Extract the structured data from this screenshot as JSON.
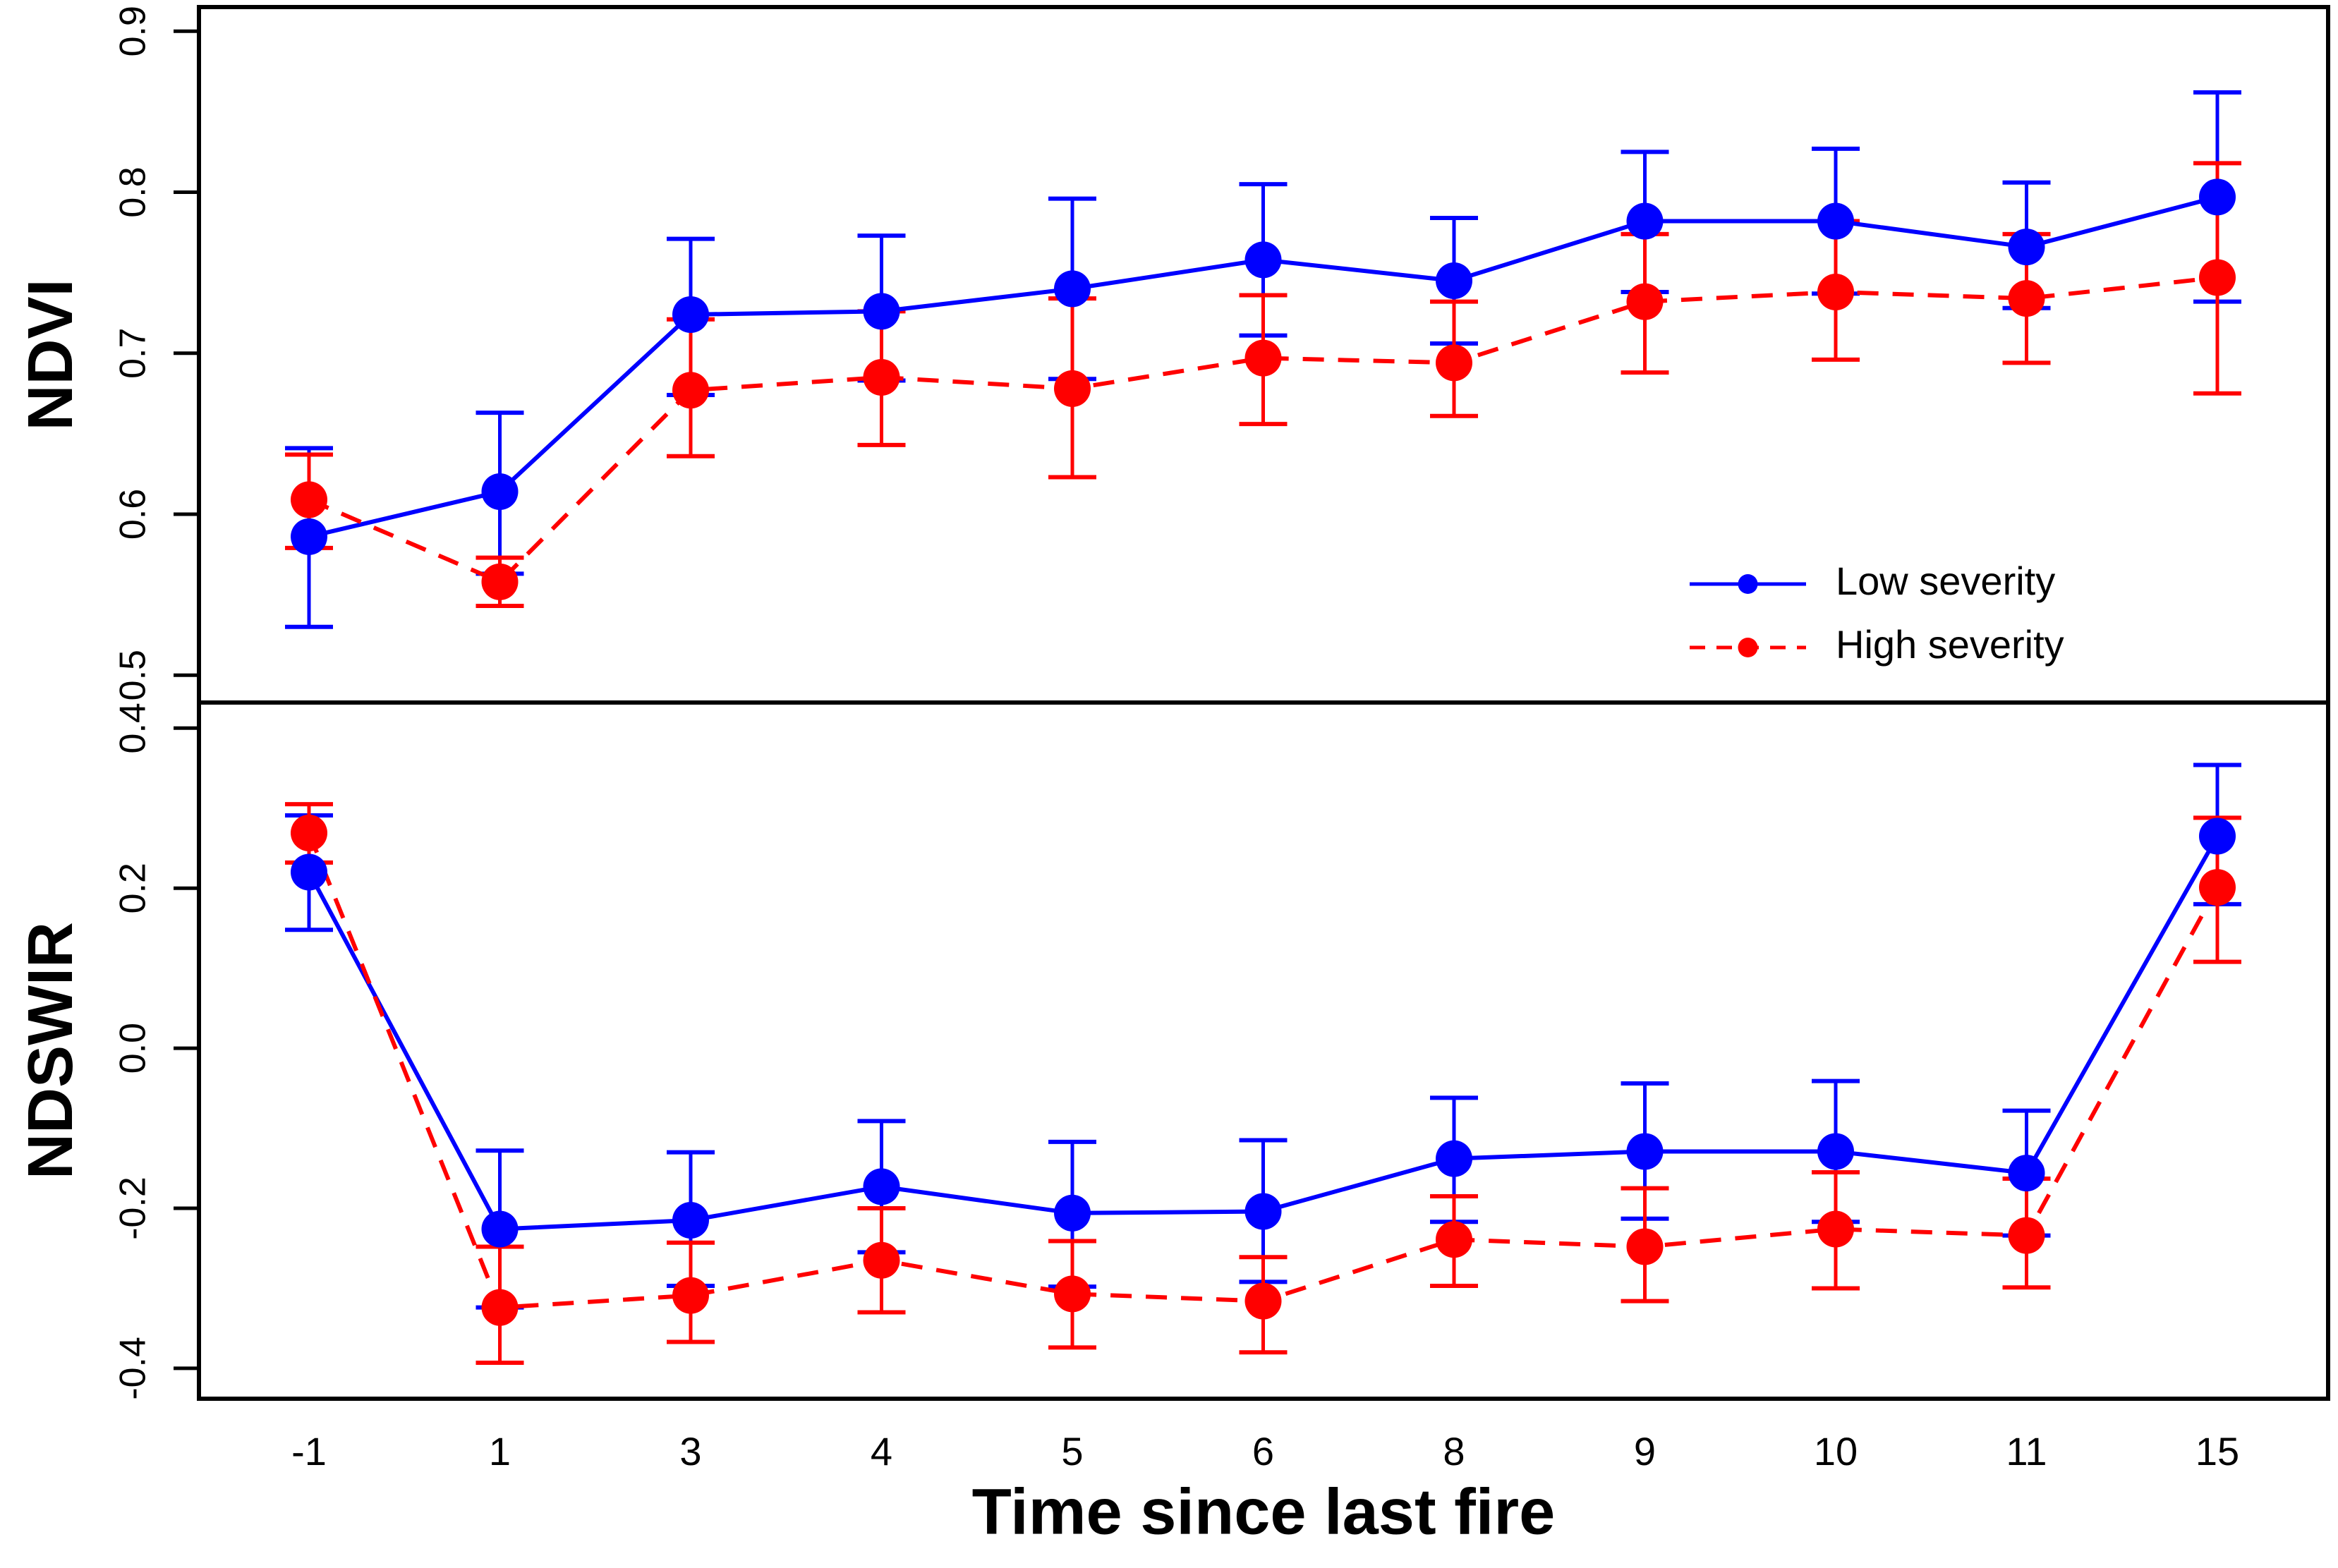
{
  "figure": {
    "x_axis_label": "Time since last fire",
    "x_categories": [
      "-1",
      "1",
      "3",
      "4",
      "5",
      "6",
      "8",
      "9",
      "10",
      "11",
      "15"
    ],
    "colors": {
      "low_severity": "#0000ff",
      "high_severity": "#ff0000",
      "axis": "#000000",
      "background": "#ffffff"
    }
  },
  "legend": {
    "items": [
      {
        "label": "Low severity",
        "color": "#0000ff",
        "linestyle": "solid"
      },
      {
        "label": "High severity",
        "color": "#ff0000",
        "linestyle": "dashed"
      }
    ]
  },
  "chart_data": [
    {
      "type": "line",
      "panel": "top",
      "ylabel": "NDVI",
      "categories": [
        -1,
        1,
        3,
        4,
        5,
        6,
        8,
        9,
        10,
        11,
        15
      ],
      "ytick_labels": [
        "0.5",
        "0.6",
        "0.7",
        "0.8",
        "0.9"
      ],
      "yticks": [
        0.5,
        0.6,
        0.7,
        0.8,
        0.9
      ],
      "ylim": [
        0.483,
        0.915
      ],
      "grid": false,
      "series": [
        {
          "name": "Low severity",
          "color": "#0000ff",
          "linestyle": "solid",
          "values": [
            0.586,
            0.614,
            0.724,
            0.726,
            0.74,
            0.758,
            0.745,
            0.782,
            0.782,
            0.766,
            0.797
          ],
          "lower": [
            0.53,
            0.563,
            0.674,
            0.683,
            0.684,
            0.711,
            0.706,
            0.738,
            0.737,
            0.728,
            0.732
          ],
          "upper": [
            0.641,
            0.663,
            0.771,
            0.773,
            0.796,
            0.805,
            0.784,
            0.825,
            0.827,
            0.806,
            0.862
          ]
        },
        {
          "name": "High severity",
          "color": "#ff0000",
          "linestyle": "dashed",
          "values": [
            0.609,
            0.558,
            0.677,
            0.685,
            0.678,
            0.697,
            0.694,
            0.732,
            0.738,
            0.734,
            0.747
          ],
          "lower": [
            0.579,
            0.543,
            0.636,
            0.643,
            0.623,
            0.656,
            0.661,
            0.688,
            0.696,
            0.694,
            0.675
          ],
          "upper": [
            0.637,
            0.573,
            0.721,
            0.726,
            0.734,
            0.736,
            0.732,
            0.774,
            0.782,
            0.774,
            0.818
          ]
        }
      ]
    },
    {
      "type": "line",
      "panel": "bottom",
      "ylabel": "NDSWIR",
      "xlabel": "Time since last fire",
      "categories": [
        -1,
        1,
        3,
        4,
        5,
        6,
        8,
        9,
        10,
        11,
        15
      ],
      "ytick_labels": [
        "-0.4",
        "-0.2",
        "0.0",
        "0.2",
        "0.4"
      ],
      "yticks": [
        -0.4,
        -0.2,
        0.0,
        0.2,
        0.4
      ],
      "ylim": [
        -0.438,
        0.432
      ],
      "grid": false,
      "series": [
        {
          "name": "Low severity",
          "color": "#0000ff",
          "linestyle": "solid",
          "values": [
            0.22,
            -0.226,
            -0.215,
            -0.173,
            -0.206,
            -0.204,
            -0.138,
            -0.129,
            -0.129,
            -0.156,
            0.265
          ],
          "lower": [
            0.148,
            -0.324,
            -0.297,
            -0.255,
            -0.298,
            -0.292,
            -0.217,
            -0.213,
            -0.217,
            -0.234,
            0.18
          ],
          "upper": [
            0.291,
            -0.128,
            -0.13,
            -0.091,
            -0.117,
            -0.115,
            -0.062,
            -0.044,
            -0.041,
            -0.078,
            0.354
          ]
        },
        {
          "name": "High severity",
          "color": "#ff0000",
          "linestyle": "dashed",
          "values": [
            0.269,
            -0.324,
            -0.309,
            -0.265,
            -0.307,
            -0.316,
            -0.239,
            -0.248,
            -0.226,
            -0.234,
            0.201
          ],
          "lower": [
            0.232,
            -0.393,
            -0.367,
            -0.33,
            -0.374,
            -0.38,
            -0.297,
            -0.316,
            -0.3,
            -0.299,
            0.108
          ],
          "upper": [
            0.305,
            -0.248,
            -0.243,
            -0.2,
            -0.241,
            -0.261,
            -0.185,
            -0.175,
            -0.155,
            -0.163,
            0.288
          ]
        }
      ]
    }
  ]
}
